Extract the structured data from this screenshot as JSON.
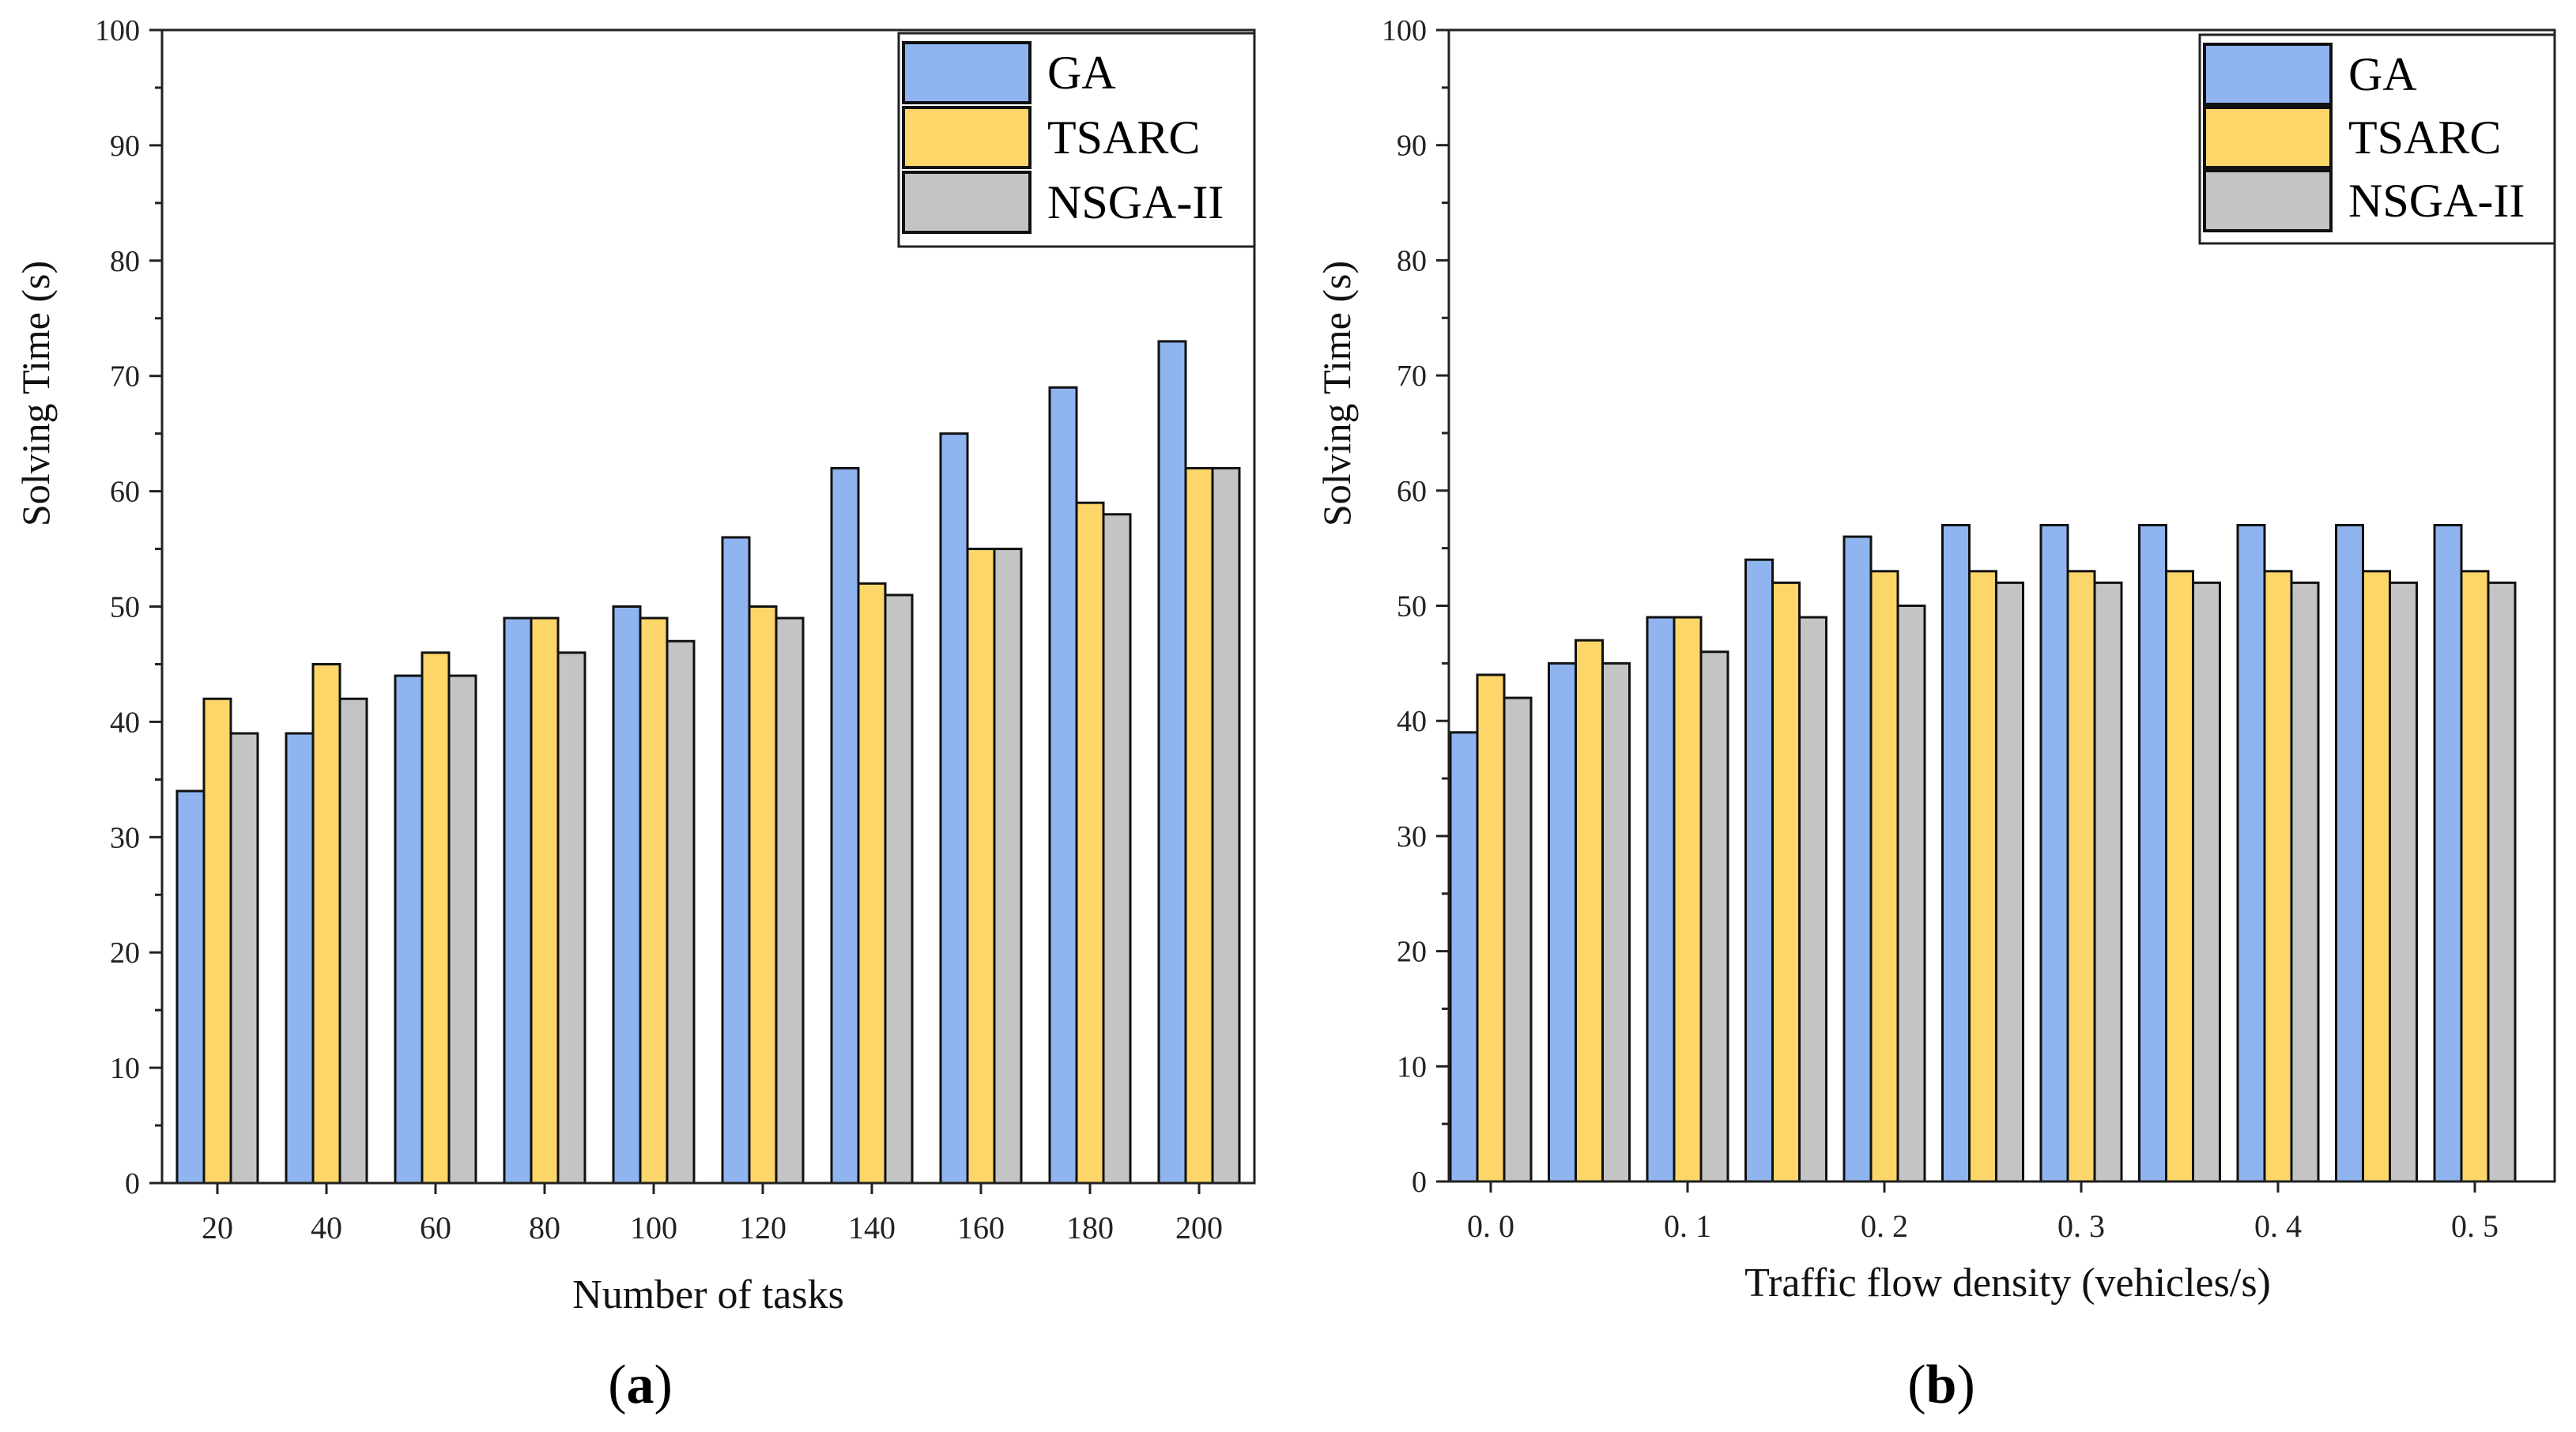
{
  "colors": {
    "GA": "#8fb4f0",
    "TSARC": "#fcd669",
    "NSGA-II": "#c4c4c4",
    "edge": "#111111"
  },
  "chart_data": [
    {
      "type": "bar",
      "caption_open": "(",
      "caption_letter": "a",
      "caption_close": ")",
      "xlabel": "Number of tasks",
      "ylabel": "Solving Time (s)",
      "ylim": [
        0,
        100
      ],
      "yticks": [
        0,
        10,
        20,
        30,
        40,
        50,
        60,
        70,
        80,
        90,
        100
      ],
      "categories": [
        "20",
        "40",
        "60",
        "80",
        "100",
        "120",
        "140",
        "160",
        "180",
        "200"
      ],
      "legend_position": "top-right",
      "series": [
        {
          "name": "GA",
          "values": [
            34,
            39,
            44,
            49,
            50,
            56,
            62,
            65,
            69,
            73
          ]
        },
        {
          "name": "TSARC",
          "values": [
            42,
            45,
            46,
            49,
            49,
            50,
            52,
            55,
            59,
            62
          ]
        },
        {
          "name": "NSGA-II",
          "values": [
            39,
            42,
            44,
            46,
            47,
            49,
            51,
            55,
            58,
            62
          ]
        }
      ]
    },
    {
      "type": "bar",
      "caption_open": "(",
      "caption_letter": "b",
      "caption_close": ")",
      "xlabel": "Traffic flow density (vehicles/s)",
      "ylabel": "Solving Time (s)",
      "ylim": [
        0,
        100
      ],
      "yticks": [
        0,
        10,
        20,
        30,
        40,
        50,
        60,
        70,
        80,
        90,
        100
      ],
      "categories": [
        "0.00",
        "0.05",
        "0.10",
        "0.15",
        "0.20",
        "0.25",
        "0.30",
        "0.35",
        "0.40",
        "0.45",
        "0.50"
      ],
      "xtick_labels": [
        "0. 0",
        "0. 1",
        "0. 2",
        "0. 3",
        "0. 4",
        "0. 5"
      ],
      "legend_position": "top-right",
      "series": [
        {
          "name": "GA",
          "values": [
            39,
            45,
            49,
            54,
            56,
            57,
            57,
            57,
            57,
            57,
            57
          ]
        },
        {
          "name": "TSARC",
          "values": [
            44,
            47,
            49,
            52,
            53,
            53,
            53,
            53,
            53,
            53,
            53
          ]
        },
        {
          "name": "NSGA-II",
          "values": [
            42,
            45,
            46,
            49,
            50,
            52,
            52,
            52,
            52,
            52,
            52
          ]
        }
      ]
    }
  ]
}
